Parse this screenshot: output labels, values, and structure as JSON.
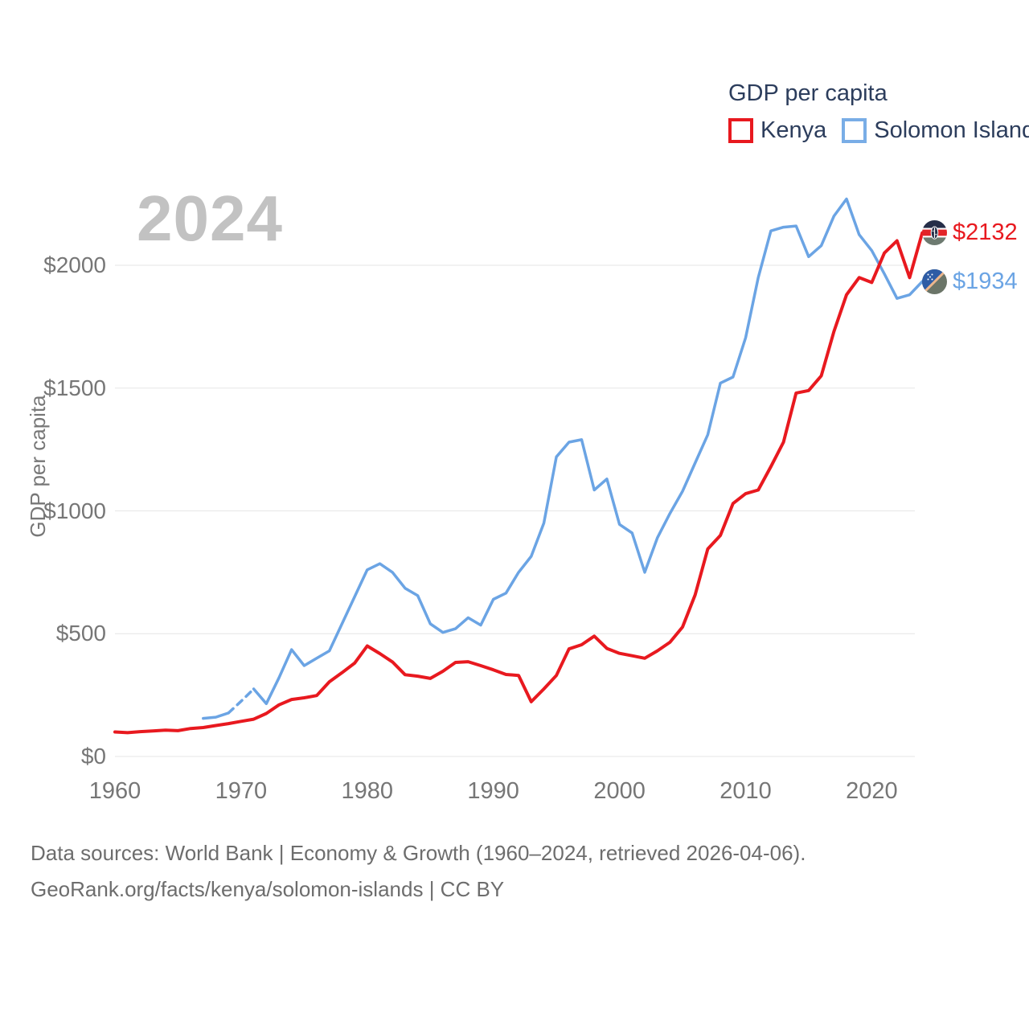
{
  "legend": {
    "title": "GDP per capita",
    "items": [
      {
        "label": "Kenya",
        "color": "#e8191f"
      },
      {
        "label": "Solomon Islands",
        "color": "#6ba4e4"
      }
    ]
  },
  "watermark": "2024",
  "y_axis": {
    "label": "GDP per capita",
    "ticks": [
      "$0",
      "$500",
      "$1000",
      "$1500",
      "$2000"
    ]
  },
  "x_axis": {
    "ticks": [
      "1960",
      "1970",
      "1980",
      "1990",
      "2000",
      "2010",
      "2020"
    ]
  },
  "end_labels": {
    "kenya": {
      "value": "$2132",
      "flag_icon": "kenya-flag-icon"
    },
    "solomon_islands": {
      "value": "$1934",
      "flag_icon": "solomon-islands-flag-icon"
    }
  },
  "footer": {
    "line1": "Data sources: World Bank | Economy & Growth (1960–2024, retrieved 2026-04-06).",
    "line2": "GeoRank.org/facts/kenya/solomon-islands | CC BY"
  },
  "colors": {
    "kenya": "#e8191f",
    "solomon_islands": "#6ba4e4",
    "watermark": "#c2c2c2",
    "axis_text": "#767676",
    "legend_text": "#2c3d5c",
    "footer_text": "#6d6d6d",
    "gridline": "#e6e6e6"
  },
  "chart_data": {
    "type": "line",
    "title": "GDP per capita",
    "ylabel": "GDP per capita",
    "x_range": [
      1960,
      2024
    ],
    "ylim": [
      0,
      2200
    ],
    "grid": "horizontal",
    "legend_position": "top-right",
    "series": [
      {
        "name": "Kenya",
        "start_year": 1960,
        "end_value_label": "$2132",
        "values": [
          100,
          97,
          101,
          104,
          107,
          105,
          114,
          118,
          126,
          134,
          143,
          152,
          175,
          210,
          232,
          239,
          248,
          304,
          341,
          380,
          450,
          419,
          385,
          333,
          327,
          318,
          347,
          383,
          386,
          370,
          353,
          334,
          330,
          223,
          275,
          330,
          438,
          455,
          490,
          440,
          420,
          410,
          400,
          430,
          465,
          527,
          658,
          845,
          900,
          1030,
          1070,
          1085,
          1180,
          1280,
          1480,
          1490,
          1550,
          1730,
          1880,
          1950,
          1930,
          2050,
          2100,
          1950,
          2132
        ]
      },
      {
        "name": "Solomon Islands",
        "start_year": 1967,
        "end_value_label": "$1934",
        "dashed_years": [
          1969,
          1971
        ],
        "values": [
          155,
          160,
          177,
          225,
          275,
          215,
          320,
          435,
          370,
          400,
          430,
          540,
          650,
          760,
          785,
          750,
          685,
          655,
          540,
          505,
          520,
          565,
          535,
          640,
          665,
          750,
          815,
          950,
          1220,
          1280,
          1290,
          1085,
          1130,
          945,
          910,
          750,
          890,
          990,
          1080,
          1195,
          1310,
          1520,
          1545,
          1705,
          1950,
          2140,
          2155,
          2160,
          2035,
          2080,
          2200,
          2270,
          2125,
          2060,
          1965,
          1865,
          1880,
          1934
        ]
      }
    ]
  }
}
